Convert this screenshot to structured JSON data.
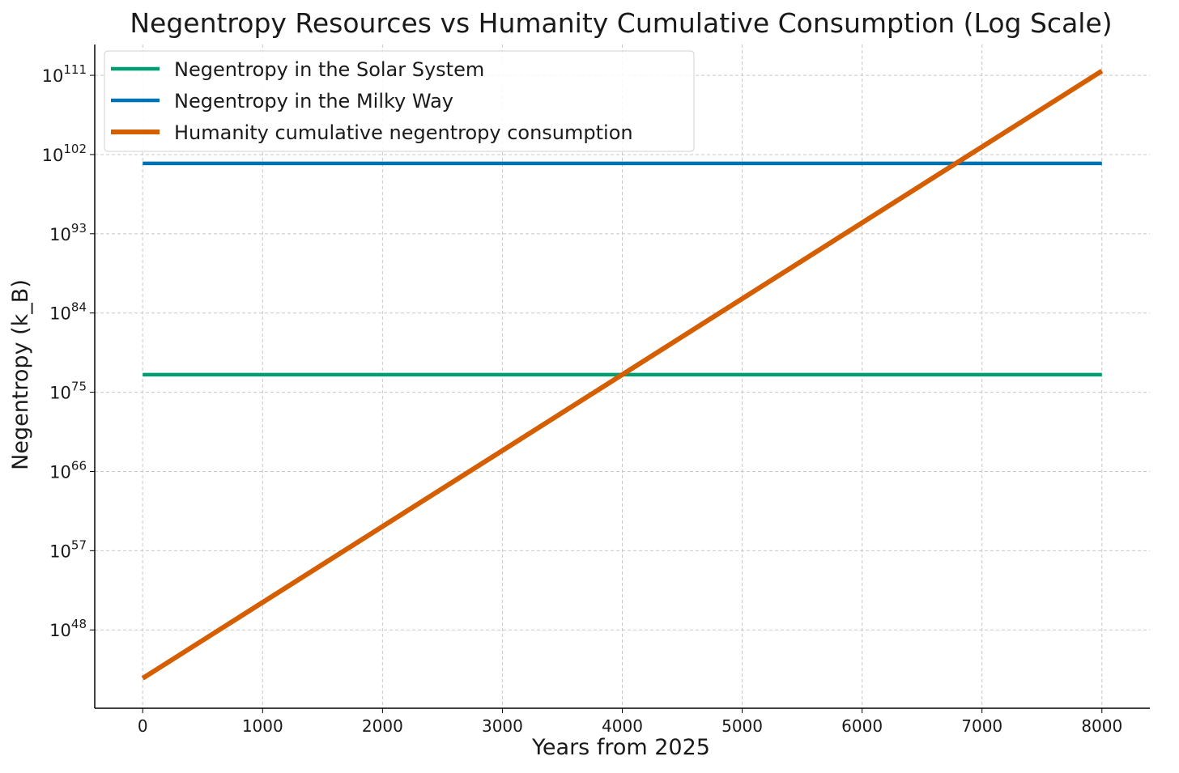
{
  "chart_data": {
    "type": "line",
    "title": "Negentropy Resources vs Humanity Cumulative Consumption (Log Scale)",
    "xlabel": "Years from 2025",
    "ylabel": "Negentropy (k_B)",
    "yscale": "log",
    "xlim": [
      -400,
      8400
    ],
    "ylim_log10": [
      39.1,
      114.5
    ],
    "grid": true,
    "legend_position": "top-left",
    "xticks": [
      0,
      1000,
      2000,
      3000,
      4000,
      5000,
      6000,
      7000,
      8000
    ],
    "yticks": [
      {
        "base": "10",
        "exp": "48",
        "log10": 48
      },
      {
        "base": "10",
        "exp": "57",
        "log10": 57
      },
      {
        "base": "10",
        "exp": "66",
        "log10": 66
      },
      {
        "base": "10",
        "exp": "75",
        "log10": 75
      },
      {
        "base": "10",
        "exp": "84",
        "log10": 84
      },
      {
        "base": "10",
        "exp": "93",
        "log10": 93
      },
      {
        "base": "10",
        "exp": "102",
        "log10": 102
      },
      {
        "base": "10",
        "exp": "111",
        "log10": 111
      }
    ],
    "series": [
      {
        "name": "Negentropy in the Solar System",
        "color": "#029e73",
        "x": [
          0,
          8000
        ],
        "log10_y": [
          77,
          77
        ]
      },
      {
        "name": "Negentropy in the Milky Way",
        "color": "#0173b2",
        "x": [
          0,
          8000
        ],
        "log10_y": [
          101,
          101
        ]
      },
      {
        "name": "Humanity cumulative negentropy consumption",
        "color": "#d55e00",
        "x": [
          0,
          8000
        ],
        "log10_y": [
          42.5,
          111.5
        ]
      }
    ]
  }
}
